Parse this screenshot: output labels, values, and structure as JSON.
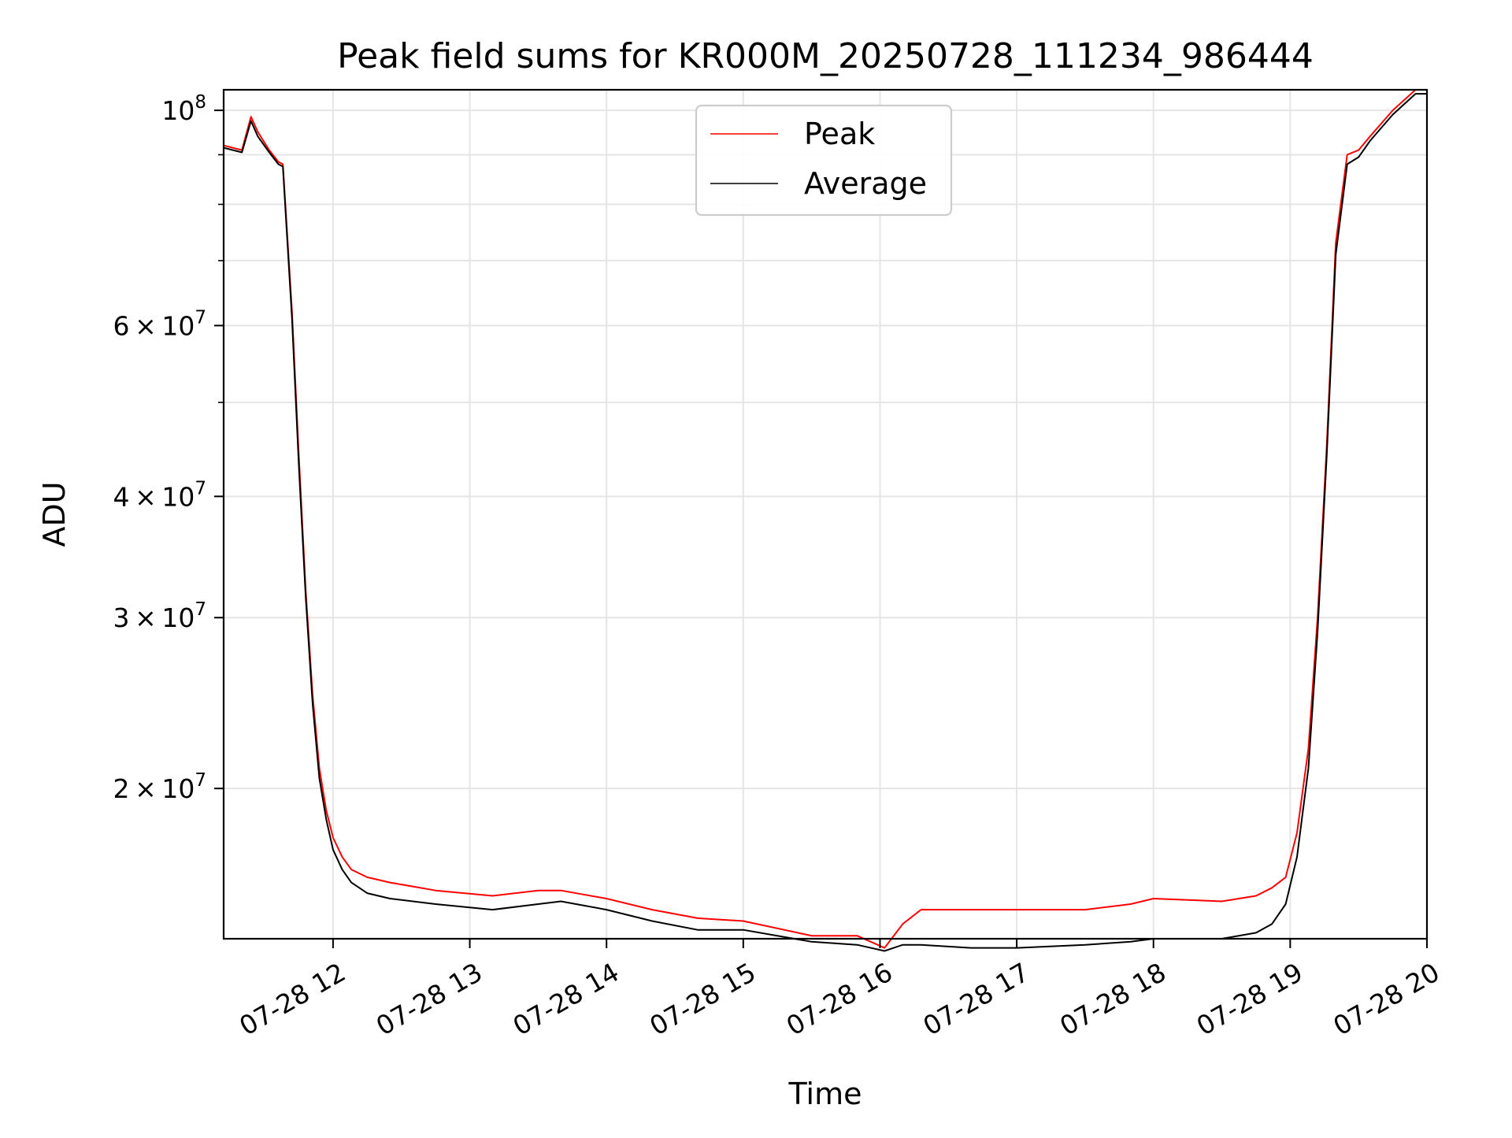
{
  "chart_data": {
    "type": "line",
    "title": "Peak field sums for KR000M_20250728_111234_986444",
    "xlabel": "Time",
    "ylabel": "ADU",
    "x_type": "datetime",
    "xlim": [
      "2025-07-28 11:12",
      "2025-07-28 20:00"
    ],
    "ylim": [
      14000000,
      105000000
    ],
    "y_scale": "log",
    "grid": true,
    "legend_position": "top-center",
    "x_ticks": [
      {
        "value": "2025-07-28 12:00",
        "label": "07-28 12"
      },
      {
        "value": "2025-07-28 13:00",
        "label": "07-28 13"
      },
      {
        "value": "2025-07-28 14:00",
        "label": "07-28 14"
      },
      {
        "value": "2025-07-28 15:00",
        "label": "07-28 15"
      },
      {
        "value": "2025-07-28 16:00",
        "label": "07-28 16"
      },
      {
        "value": "2025-07-28 17:00",
        "label": "07-28 17"
      },
      {
        "value": "2025-07-28 18:00",
        "label": "07-28 18"
      },
      {
        "value": "2025-07-28 19:00",
        "label": "07-28 19"
      },
      {
        "value": "2025-07-28 20:00",
        "label": "07-28 20"
      }
    ],
    "y_major_ticks": [
      {
        "value": 100000000,
        "mantissa": "",
        "exp": "8"
      },
      {
        "value": 60000000,
        "mantissa": "6",
        "exp": "7"
      },
      {
        "value": 40000000,
        "mantissa": "4",
        "exp": "7"
      },
      {
        "value": 30000000,
        "mantissa": "3",
        "exp": "7"
      },
      {
        "value": 20000000,
        "mantissa": "2",
        "exp": "7"
      }
    ],
    "y_tick_times_symbol": "×",
    "y_tick_base": "10",
    "y_minor_ticks": [
      90000000,
      80000000,
      70000000,
      50000000
    ],
    "series": [
      {
        "name": "Peak",
        "color": "#ff0000",
        "x": [
          "2025-07-28 11:12",
          "2025-07-28 11:20",
          "2025-07-28 11:24",
          "2025-07-28 11:27",
          "2025-07-28 11:32",
          "2025-07-28 11:36",
          "2025-07-28 11:38",
          "2025-07-28 11:42",
          "2025-07-28 11:45",
          "2025-07-28 11:48",
          "2025-07-28 11:51",
          "2025-07-28 11:54",
          "2025-07-28 11:57",
          "2025-07-28 12:00",
          "2025-07-28 12:04",
          "2025-07-28 12:08",
          "2025-07-28 12:15",
          "2025-07-28 12:25",
          "2025-07-28 12:45",
          "2025-07-28 13:10",
          "2025-07-28 13:30",
          "2025-07-28 13:40",
          "2025-07-28 14:00",
          "2025-07-28 14:20",
          "2025-07-28 14:40",
          "2025-07-28 15:00",
          "2025-07-28 15:30",
          "2025-07-28 15:50",
          "2025-07-28 16:02",
          "2025-07-28 16:10",
          "2025-07-28 16:18",
          "2025-07-28 16:40",
          "2025-07-28 17:00",
          "2025-07-28 17:30",
          "2025-07-28 17:50",
          "2025-07-28 18:00",
          "2025-07-28 18:30",
          "2025-07-28 18:45",
          "2025-07-28 18:52",
          "2025-07-28 18:58",
          "2025-07-28 19:03",
          "2025-07-28 19:08",
          "2025-07-28 19:12",
          "2025-07-28 19:16",
          "2025-07-28 19:20",
          "2025-07-28 19:25",
          "2025-07-28 19:30",
          "2025-07-28 19:35",
          "2025-07-28 19:45",
          "2025-07-28 19:55",
          "2025-07-28 20:00"
        ],
        "y": [
          92000000,
          91000000,
          98500000,
          95000000,
          91000000,
          88500000,
          88000000,
          62000000,
          44000000,
          32000000,
          25000000,
          21000000,
          19000000,
          17800000,
          17000000,
          16500000,
          16200000,
          16000000,
          15700000,
          15500000,
          15700000,
          15700000,
          15400000,
          15000000,
          14700000,
          14600000,
          14100000,
          14100000,
          13700000,
          14500000,
          15000000,
          15000000,
          15000000,
          15000000,
          15200000,
          15400000,
          15300000,
          15500000,
          15800000,
          16200000,
          18000000,
          22000000,
          30000000,
          45000000,
          73000000,
          90000000,
          91000000,
          94000000,
          100000000,
          105000000,
          105000000
        ]
      },
      {
        "name": "Average",
        "color": "#000000",
        "x": [
          "2025-07-28 11:12",
          "2025-07-28 11:20",
          "2025-07-28 11:24",
          "2025-07-28 11:27",
          "2025-07-28 11:32",
          "2025-07-28 11:36",
          "2025-07-28 11:38",
          "2025-07-28 11:42",
          "2025-07-28 11:45",
          "2025-07-28 11:48",
          "2025-07-28 11:51",
          "2025-07-28 11:54",
          "2025-07-28 11:57",
          "2025-07-28 12:00",
          "2025-07-28 12:04",
          "2025-07-28 12:08",
          "2025-07-28 12:15",
          "2025-07-28 12:25",
          "2025-07-28 12:45",
          "2025-07-28 13:10",
          "2025-07-28 13:30",
          "2025-07-28 13:40",
          "2025-07-28 14:00",
          "2025-07-28 14:20",
          "2025-07-28 14:40",
          "2025-07-28 15:00",
          "2025-07-28 15:30",
          "2025-07-28 15:50",
          "2025-07-28 16:02",
          "2025-07-28 16:10",
          "2025-07-28 16:18",
          "2025-07-28 16:40",
          "2025-07-28 17:00",
          "2025-07-28 17:30",
          "2025-07-28 17:50",
          "2025-07-28 18:00",
          "2025-07-28 18:30",
          "2025-07-28 18:45",
          "2025-07-28 18:52",
          "2025-07-28 18:58",
          "2025-07-28 19:03",
          "2025-07-28 19:08",
          "2025-07-28 19:12",
          "2025-07-28 19:16",
          "2025-07-28 19:20",
          "2025-07-28 19:25",
          "2025-07-28 19:30",
          "2025-07-28 19:35",
          "2025-07-28 19:45",
          "2025-07-28 19:55",
          "2025-07-28 20:00"
        ],
        "y": [
          91500000,
          90500000,
          97500000,
          94000000,
          90500000,
          88000000,
          87500000,
          61000000,
          43000000,
          31500000,
          24500000,
          20500000,
          18600000,
          17300000,
          16500000,
          16000000,
          15600000,
          15400000,
          15200000,
          15000000,
          15200000,
          15300000,
          15000000,
          14600000,
          14300000,
          14300000,
          13900000,
          13800000,
          13600000,
          13800000,
          13800000,
          13700000,
          13700000,
          13800000,
          13900000,
          14000000,
          14000000,
          14200000,
          14500000,
          15200000,
          17000000,
          21000000,
          29000000,
          44000000,
          71000000,
          88000000,
          89500000,
          93000000,
          99000000,
          104000000,
          104000000
        ]
      }
    ]
  }
}
